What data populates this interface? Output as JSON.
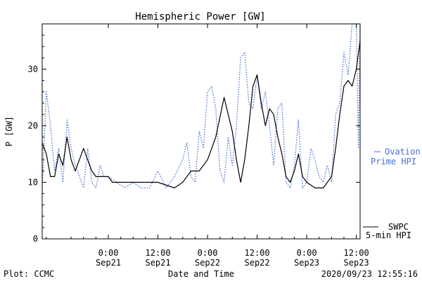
{
  "chart_data": {
    "type": "line",
    "title": "Hemispheric Power [GW]",
    "xlabel": "Date and Time",
    "ylabel": "P [GW]",
    "ylim": [
      0,
      38
    ],
    "y_ticks": [
      0,
      10,
      20,
      30
    ],
    "x_range": [
      "2020-09-20 08:00",
      "2020-09-23 12:55"
    ],
    "x_ticks": [
      {
        "x": "2020-09-21 00:00",
        "time": "0:00",
        "date": "Sep21"
      },
      {
        "x": "2020-09-21 12:00",
        "time": "12:00",
        "date": "Sep21"
      },
      {
        "x": "2020-09-22 00:00",
        "time": "0:00",
        "date": "Sep22"
      },
      {
        "x": "2020-09-22 12:00",
        "time": "12:00",
        "date": "Sep22"
      },
      {
        "x": "2020-09-23 00:00",
        "time": "0:00",
        "date": "Sep23"
      },
      {
        "x": "2020-09-23 12:00",
        "time": "12:00",
        "date": "Sep23"
      }
    ],
    "grid": false,
    "series": [
      {
        "name": "SWPC 5-min HPI",
        "name_lines": [
          "SWPC",
          "5-min HPI"
        ],
        "color": "#000000",
        "style": "solid",
        "x": [
          "2020-09-20 08:00",
          "2020-09-20 09:00",
          "2020-09-20 10:00",
          "2020-09-20 11:00",
          "2020-09-20 12:00",
          "2020-09-20 13:00",
          "2020-09-20 14:00",
          "2020-09-20 15:00",
          "2020-09-20 16:00",
          "2020-09-20 17:00",
          "2020-09-20 18:00",
          "2020-09-20 19:00",
          "2020-09-20 20:00",
          "2020-09-20 21:00",
          "2020-09-20 22:00",
          "2020-09-20 23:00",
          "2020-09-21 00:00",
          "2020-09-21 01:00",
          "2020-09-21 02:00",
          "2020-09-21 03:00",
          "2020-09-21 04:00",
          "2020-09-21 06:00",
          "2020-09-21 08:00",
          "2020-09-21 12:00",
          "2020-09-21 16:00",
          "2020-09-21 18:00",
          "2020-09-21 20:00",
          "2020-09-21 22:00",
          "2020-09-22 00:00",
          "2020-09-22 02:00",
          "2020-09-22 04:00",
          "2020-09-22 06:00",
          "2020-09-22 07:00",
          "2020-09-22 08:00",
          "2020-09-22 09:00",
          "2020-09-22 10:00",
          "2020-09-22 11:00",
          "2020-09-22 12:00",
          "2020-09-22 13:00",
          "2020-09-22 14:00",
          "2020-09-22 15:00",
          "2020-09-22 16:00",
          "2020-09-22 17:00",
          "2020-09-22 18:00",
          "2020-09-22 19:00",
          "2020-09-22 20:00",
          "2020-09-22 21:00",
          "2020-09-22 22:00",
          "2020-09-22 23:00",
          "2020-09-23 00:00",
          "2020-09-23 02:00",
          "2020-09-23 04:00",
          "2020-09-23 06:00",
          "2020-09-23 07:00",
          "2020-09-23 08:00",
          "2020-09-23 09:00",
          "2020-09-23 10:00",
          "2020-09-23 11:00",
          "2020-09-23 12:00",
          "2020-09-23 12:55"
        ],
        "values": [
          17,
          15,
          11,
          11,
          15,
          13,
          18,
          14,
          12,
          14,
          16,
          14,
          12,
          11,
          11,
          11,
          11,
          10,
          10,
          10,
          10,
          10,
          10,
          10,
          9,
          10,
          12,
          12,
          14,
          18,
          25,
          19,
          14,
          10,
          14,
          20,
          27,
          29,
          24,
          20,
          23,
          22,
          18,
          15,
          11,
          10,
          12,
          15,
          11,
          10,
          9,
          9,
          11,
          16,
          22,
          27,
          28,
          27,
          30,
          35
        ]
      },
      {
        "name": "Ovation Prime HPI",
        "name_lines": [
          "Ovation",
          "Prime HPI"
        ],
        "color": "#4a6ed8",
        "style": "dotted",
        "x": [
          "2020-09-20 08:00",
          "2020-09-20 09:00",
          "2020-09-20 10:00",
          "2020-09-20 11:00",
          "2020-09-20 12:00",
          "2020-09-20 13:00",
          "2020-09-20 14:00",
          "2020-09-20 15:00",
          "2020-09-20 16:00",
          "2020-09-20 17:00",
          "2020-09-20 18:00",
          "2020-09-20 19:00",
          "2020-09-20 20:00",
          "2020-09-20 21:00",
          "2020-09-20 22:00",
          "2020-09-20 23:00",
          "2020-09-21 00:00",
          "2020-09-21 02:00",
          "2020-09-21 04:00",
          "2020-09-21 06:00",
          "2020-09-21 08:00",
          "2020-09-21 10:00",
          "2020-09-21 12:00",
          "2020-09-21 14:00",
          "2020-09-21 16:00",
          "2020-09-21 18:00",
          "2020-09-21 19:00",
          "2020-09-21 20:00",
          "2020-09-21 21:00",
          "2020-09-21 22:00",
          "2020-09-21 23:00",
          "2020-09-22 00:00",
          "2020-09-22 01:00",
          "2020-09-22 02:00",
          "2020-09-22 03:00",
          "2020-09-22 04:00",
          "2020-09-22 05:00",
          "2020-09-22 06:00",
          "2020-09-22 07:00",
          "2020-09-22 08:00",
          "2020-09-22 09:00",
          "2020-09-22 10:00",
          "2020-09-22 11:00",
          "2020-09-22 12:00",
          "2020-09-22 13:00",
          "2020-09-22 14:00",
          "2020-09-22 15:00",
          "2020-09-22 16:00",
          "2020-09-22 17:00",
          "2020-09-22 18:00",
          "2020-09-22 19:00",
          "2020-09-22 20:00",
          "2020-09-22 21:00",
          "2020-09-22 22:00",
          "2020-09-22 23:00",
          "2020-09-23 00:00",
          "2020-09-23 01:00",
          "2020-09-23 02:00",
          "2020-09-23 03:00",
          "2020-09-23 04:00",
          "2020-09-23 05:00",
          "2020-09-23 06:00",
          "2020-09-23 07:00",
          "2020-09-23 08:00",
          "2020-09-23 09:00",
          "2020-09-23 10:00",
          "2020-09-23 11:00",
          "2020-09-23 12:00",
          "2020-09-23 12:30",
          "2020-09-23 12:55"
        ],
        "values": [
          9,
          26,
          20,
          12,
          16,
          10,
          21,
          16,
          13,
          11,
          9,
          16,
          10,
          9,
          13,
          11,
          11,
          10,
          9,
          10,
          9,
          9,
          12,
          9,
          11,
          14,
          17,
          11,
          10,
          19,
          16,
          26,
          27,
          23,
          12,
          10,
          18,
          13,
          20,
          32,
          33,
          24,
          23,
          29,
          23,
          26,
          20,
          13,
          23,
          24,
          10,
          9,
          13,
          21,
          9,
          10,
          16,
          14,
          11,
          10,
          13,
          10,
          22,
          24,
          33,
          29,
          38,
          38,
          16,
          38
        ]
      }
    ]
  },
  "footer": {
    "left": "Plot: CCMC",
    "right": "2020/09/23 12:55:16"
  }
}
